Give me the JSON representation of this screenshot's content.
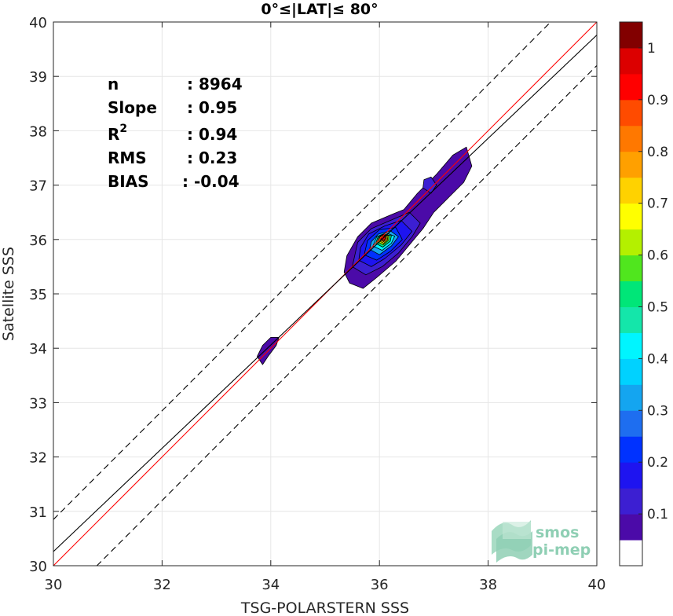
{
  "chart_data": {
    "type": "contour-scatter",
    "title": "0°≤|LAT|≤ 80°",
    "xlabel": "TSG-POLARSTERN SSS",
    "ylabel": "Satellite SSS",
    "xlim": [
      30,
      40
    ],
    "ylim": [
      30,
      40
    ],
    "xticks": [
      "30",
      "32",
      "34",
      "36",
      "38",
      "40"
    ],
    "yticks": [
      "30",
      "31",
      "32",
      "33",
      "34",
      "35",
      "36",
      "37",
      "38",
      "39",
      "40"
    ],
    "grid": true,
    "stats": [
      {
        "label": "n",
        "value": ": 8964"
      },
      {
        "label": "Slope",
        "value": ": 0.95"
      },
      {
        "label": "R",
        "sup": "2",
        "value": ": 0.94"
      },
      {
        "label": "RMS",
        "value": ": 0.23"
      },
      {
        "label": "BIAS",
        "value": ": -0.04"
      }
    ],
    "lines": [
      {
        "role": "one-to-one",
        "color": "#ff0000",
        "style": "solid",
        "points": [
          [
            30,
            30
          ],
          [
            40,
            40
          ]
        ]
      },
      {
        "role": "regression",
        "color": "#000000",
        "style": "solid",
        "points": [
          [
            30,
            30.26
          ],
          [
            40,
            39.76
          ]
        ]
      },
      {
        "role": "upper-bound",
        "color": "#000000",
        "style": "dashed",
        "points": [
          [
            30,
            30.85
          ],
          [
            40,
            40.85
          ]
        ]
      },
      {
        "role": "lower-bound",
        "color": "#000000",
        "style": "dashed",
        "points": [
          [
            30,
            29.2
          ],
          [
            40,
            39.2
          ]
        ]
      }
    ],
    "density_regions": [
      {
        "level": 0.05,
        "polygon": [
          [
            35.35,
            35.4
          ],
          [
            35.45,
            35.2
          ],
          [
            35.7,
            35.1
          ],
          [
            35.95,
            35.3
          ],
          [
            36.3,
            35.6
          ],
          [
            36.55,
            35.9
          ],
          [
            36.8,
            36.2
          ],
          [
            37.0,
            36.5
          ],
          [
            37.3,
            36.8
          ],
          [
            37.55,
            37.05
          ],
          [
            37.7,
            37.35
          ],
          [
            37.6,
            37.7
          ],
          [
            37.35,
            37.55
          ],
          [
            37.05,
            37.2
          ],
          [
            36.7,
            36.85
          ],
          [
            36.45,
            36.55
          ],
          [
            36.2,
            36.45
          ],
          [
            35.85,
            36.3
          ],
          [
            35.6,
            36.05
          ],
          [
            35.4,
            35.7
          ]
        ]
      },
      {
        "level": 0.05,
        "polygon": [
          [
            33.75,
            33.85
          ],
          [
            33.85,
            33.7
          ],
          [
            33.95,
            33.85
          ],
          [
            34.1,
            34.05
          ],
          [
            34.15,
            34.2
          ],
          [
            34.0,
            34.2
          ],
          [
            33.85,
            34.05
          ]
        ]
      },
      {
        "level": 0.1,
        "polygon": [
          [
            35.5,
            35.5
          ],
          [
            35.75,
            35.35
          ],
          [
            36.05,
            35.5
          ],
          [
            36.35,
            35.75
          ],
          [
            36.6,
            36.05
          ],
          [
            36.75,
            36.3
          ],
          [
            36.55,
            36.5
          ],
          [
            36.2,
            36.35
          ],
          [
            35.85,
            36.2
          ],
          [
            35.6,
            35.95
          ]
        ]
      },
      {
        "level": 0.15,
        "polygon": [
          [
            35.62,
            35.62
          ],
          [
            35.85,
            35.5
          ],
          [
            36.1,
            35.65
          ],
          [
            36.4,
            35.9
          ],
          [
            36.6,
            36.15
          ],
          [
            36.4,
            36.35
          ],
          [
            36.1,
            36.25
          ],
          [
            35.8,
            36.1
          ],
          [
            35.65,
            35.85
          ]
        ]
      },
      {
        "level": 0.1,
        "polygon": [
          [
            36.8,
            36.95
          ],
          [
            36.95,
            36.85
          ],
          [
            37.05,
            37.0
          ],
          [
            36.95,
            37.15
          ],
          [
            36.82,
            37.1
          ]
        ]
      },
      {
        "level": 0.2,
        "polygon": [
          [
            35.72,
            35.72
          ],
          [
            35.95,
            35.62
          ],
          [
            36.2,
            35.78
          ],
          [
            36.42,
            36.0
          ],
          [
            36.3,
            36.22
          ],
          [
            36.0,
            36.18
          ],
          [
            35.78,
            35.98
          ]
        ]
      },
      {
        "level": 0.3,
        "polygon": [
          [
            35.82,
            35.82
          ],
          [
            36.0,
            35.72
          ],
          [
            36.22,
            35.88
          ],
          [
            36.35,
            36.05
          ],
          [
            36.2,
            36.16
          ],
          [
            35.98,
            36.1
          ],
          [
            35.85,
            35.96
          ]
        ]
      },
      {
        "level": 0.4,
        "polygon": [
          [
            35.88,
            35.88
          ],
          [
            36.05,
            35.8
          ],
          [
            36.22,
            35.93
          ],
          [
            36.28,
            36.06
          ],
          [
            36.12,
            36.12
          ],
          [
            35.95,
            36.05
          ]
        ]
      },
      {
        "level": 0.5,
        "polygon": [
          [
            35.93,
            35.93
          ],
          [
            36.06,
            35.86
          ],
          [
            36.2,
            35.97
          ],
          [
            36.22,
            36.07
          ],
          [
            36.08,
            36.1
          ],
          [
            35.97,
            36.04
          ]
        ]
      },
      {
        "level": 0.6,
        "polygon": [
          [
            35.96,
            35.96
          ],
          [
            36.07,
            35.9
          ],
          [
            36.17,
            35.99
          ],
          [
            36.17,
            36.07
          ],
          [
            36.06,
            36.09
          ],
          [
            35.99,
            36.03
          ]
        ]
      },
      {
        "level": 0.7,
        "polygon": [
          [
            35.99,
            35.98
          ],
          [
            36.08,
            35.93
          ],
          [
            36.15,
            36.0
          ],
          [
            36.14,
            36.07
          ],
          [
            36.05,
            36.08
          ],
          [
            36.0,
            36.03
          ]
        ]
      },
      {
        "level": 0.8,
        "polygon": [
          [
            36.01,
            36.0
          ],
          [
            36.08,
            35.96
          ],
          [
            36.13,
            36.01
          ],
          [
            36.12,
            36.06
          ],
          [
            36.06,
            36.07
          ]
        ]
      },
      {
        "level": 0.9,
        "polygon": [
          [
            36.03,
            36.01
          ],
          [
            36.08,
            35.98
          ],
          [
            36.11,
            36.02
          ],
          [
            36.1,
            36.05
          ],
          [
            36.05,
            36.05
          ]
        ]
      }
    ],
    "colorbar": {
      "range": [
        0,
        1
      ],
      "tick_labels": [
        "0.1",
        "0.2",
        "0.3",
        "0.4",
        "0.5",
        "0.6",
        "0.7",
        "0.8",
        "0.9",
        "1"
      ],
      "tick_values": [
        0.1,
        0.2,
        0.3,
        0.4,
        0.5,
        0.6,
        0.7,
        0.8,
        0.9,
        1.0
      ],
      "bands": [
        {
          "from": 0.0,
          "to": 0.05,
          "color": "#ffffff"
        },
        {
          "from": 0.05,
          "to": 0.1,
          "color": "#4b0aa8"
        },
        {
          "from": 0.1,
          "to": 0.15,
          "color": "#3c1fd2"
        },
        {
          "from": 0.15,
          "to": 0.2,
          "color": "#1e14f0"
        },
        {
          "from": 0.2,
          "to": 0.25,
          "color": "#0032ff"
        },
        {
          "from": 0.25,
          "to": 0.3,
          "color": "#1e6ef0"
        },
        {
          "from": 0.3,
          "to": 0.35,
          "color": "#14a5f0"
        },
        {
          "from": 0.35,
          "to": 0.4,
          "color": "#00d2ff"
        },
        {
          "from": 0.4,
          "to": 0.45,
          "color": "#00f5ff"
        },
        {
          "from": 0.45,
          "to": 0.5,
          "color": "#14e6aa"
        },
        {
          "from": 0.5,
          "to": 0.55,
          "color": "#00e678"
        },
        {
          "from": 0.55,
          "to": 0.6,
          "color": "#50e61e"
        },
        {
          "from": 0.6,
          "to": 0.65,
          "color": "#b4f000"
        },
        {
          "from": 0.65,
          "to": 0.7,
          "color": "#ffff00"
        },
        {
          "from": 0.7,
          "to": 0.75,
          "color": "#ffd200"
        },
        {
          "from": 0.75,
          "to": 0.8,
          "color": "#ffa000"
        },
        {
          "from": 0.8,
          "to": 0.85,
          "color": "#ff7800"
        },
        {
          "from": 0.85,
          "to": 0.9,
          "color": "#ff4b00"
        },
        {
          "from": 0.9,
          "to": 0.95,
          "color": "#ff0000"
        },
        {
          "from": 0.95,
          "to": 1.0,
          "color": "#dc0000"
        },
        {
          "from": 1.0,
          "to": 1.05,
          "color": "#820000"
        }
      ]
    }
  },
  "logo": {
    "line1": "smos",
    "line2": "pi-mep",
    "color": "#8fcfb4"
  }
}
